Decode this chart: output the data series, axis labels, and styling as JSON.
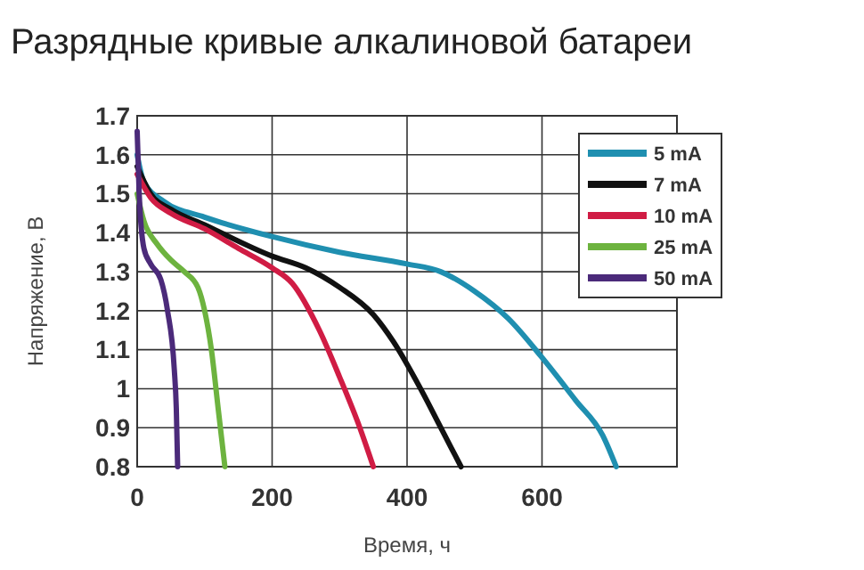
{
  "chart_data": {
    "type": "line",
    "title": "Разрядные кривые алкалиновой батареи",
    "xlabel": "Время, ч",
    "ylabel": "Напряжение, В",
    "xlim": [
      0,
      800
    ],
    "xticks": [
      0,
      200,
      400,
      600
    ],
    "ylim": [
      0.8,
      1.7
    ],
    "yticks": [
      0.8,
      0.9,
      1,
      1.1,
      1.2,
      1.3,
      1.4,
      1.5,
      1.6,
      1.7
    ],
    "grid": true,
    "legend": "top right",
    "marker": "none",
    "line_style": "solid",
    "series": [
      {
        "name": "5 mA",
        "color": "#1f8fb0",
        "x": [
          0,
          10,
          40,
          100,
          200,
          300,
          400,
          450,
          500,
          550,
          600,
          650,
          690,
          710
        ],
        "values": [
          1.6,
          1.53,
          1.48,
          1.44,
          1.39,
          1.35,
          1.32,
          1.3,
          1.25,
          1.18,
          1.08,
          0.97,
          0.88,
          0.8
        ]
      },
      {
        "name": "7 mA",
        "color": "#111111",
        "x": [
          0,
          20,
          50,
          100,
          200,
          250,
          300,
          350,
          380,
          420,
          450,
          480
        ],
        "values": [
          1.57,
          1.5,
          1.46,
          1.42,
          1.34,
          1.31,
          1.26,
          1.19,
          1.12,
          1.0,
          0.9,
          0.8
        ]
      },
      {
        "name": "10 mA",
        "color": "#d01c44",
        "x": [
          0,
          20,
          50,
          100,
          150,
          200,
          230,
          270,
          300,
          330,
          350
        ],
        "values": [
          1.55,
          1.49,
          1.45,
          1.41,
          1.36,
          1.31,
          1.27,
          1.15,
          1.03,
          0.9,
          0.8
        ]
      },
      {
        "name": "25 mA",
        "color": "#6db33f",
        "x": [
          0,
          10,
          30,
          50,
          70,
          90,
          100,
          110,
          120,
          130
        ],
        "values": [
          1.5,
          1.43,
          1.37,
          1.33,
          1.3,
          1.26,
          1.2,
          1.1,
          0.95,
          0.8
        ]
      },
      {
        "name": "50 mA",
        "color": "#4b2a7a",
        "x": [
          0,
          3,
          10,
          20,
          35,
          45,
          55,
          58,
          60
        ],
        "values": [
          1.66,
          1.5,
          1.36,
          1.32,
          1.28,
          1.2,
          1.05,
          0.95,
          0.8
        ]
      }
    ]
  }
}
